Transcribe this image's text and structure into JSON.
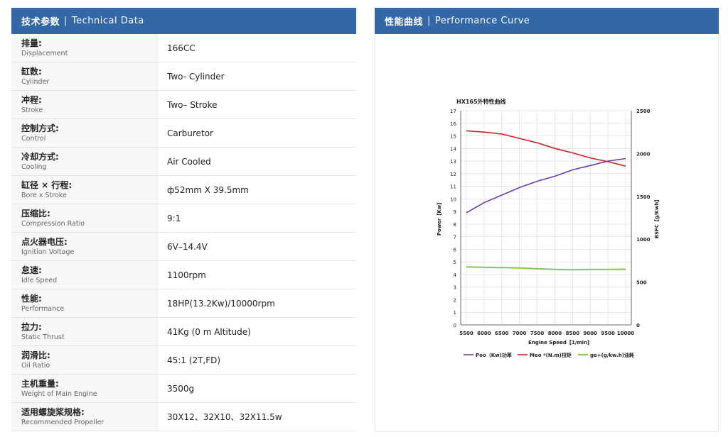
{
  "left": {
    "title_zh": "技术参数",
    "separator": "|",
    "title_en": "Technical Data",
    "rows": [
      {
        "zh": "排量:",
        "en": "Displacement",
        "value": "166CC"
      },
      {
        "zh": "缸数:",
        "en": "Cylinder",
        "value": "Two- Cylinder"
      },
      {
        "zh": "冲程:",
        "en": "Stroke",
        "value": "Two– Stroke"
      },
      {
        "zh": "控制方式:",
        "en": "Control",
        "value": "Carburetor"
      },
      {
        "zh": "冷却方式:",
        "en": "Cooling",
        "value": "Air Cooled"
      },
      {
        "zh": "缸径 × 行程:",
        "en": "Bore x Stroke",
        "value": "ф52mm X 39.5mm"
      },
      {
        "zh": "压缩比:",
        "en": "Compression Ratio",
        "value": "9:1"
      },
      {
        "zh": "点火器电压:",
        "en": "Ignition Voltage",
        "value": "6V–14.4V"
      },
      {
        "zh": "怠速:",
        "en": "Idle Speed",
        "value": "1100rpm"
      },
      {
        "zh": "性能:",
        "en": "Performance",
        "value": "18HP(13.2Kw)/10000rpm"
      },
      {
        "zh": "拉力:",
        "en": "Static Thrust",
        "value": "41Kg (0 m Altitude)"
      },
      {
        "zh": "润滑比:",
        "en": "Oil Ratio",
        "value": "45:1 (2T,FD)"
      },
      {
        "zh": "主机重量:",
        "en": "Weight of Main Engine",
        "value": "3500g"
      },
      {
        "zh": "适用螺旋桨规格:",
        "en": "Recommended Propeller",
        "value": "30X12、32X10、32X11.5w"
      }
    ]
  },
  "right": {
    "title_zh": "性能曲线",
    "separator": "|",
    "title_en": "Performance Curve"
  },
  "chart_data": {
    "type": "line",
    "title": "HX165外特性曲线",
    "xlabel": "Engine Speed【1/min】",
    "ylabel": "Power【Kw】",
    "y2label": "BSFC【g/Kwh】",
    "x": [
      5500,
      6000,
      6500,
      7000,
      7500,
      8000,
      8500,
      9000,
      9500,
      10000
    ],
    "xticks": [
      "5500",
      "6000",
      "6500",
      "7000",
      "7500",
      "8000",
      "8500",
      "9000",
      "9500",
      "10000"
    ],
    "xlim": [
      5500,
      10000
    ],
    "ylim": [
      0,
      17
    ],
    "yticks": [
      "0",
      "1",
      "2",
      "3",
      "4",
      "5",
      "6",
      "7",
      "8",
      "9",
      "10",
      "11",
      "12",
      "13",
      "14",
      "15",
      "16",
      "17"
    ],
    "y2lim": [
      0,
      2500
    ],
    "y2ticks": [
      "0",
      "500",
      "1000",
      "1500",
      "2000",
      "2500"
    ],
    "grid": true,
    "legend_position": "bottom",
    "series": [
      {
        "name": "Poo（Kw)功率",
        "color": "#6a3ab5",
        "values": [
          8.9,
          9.7,
          10.3,
          10.9,
          11.4,
          11.8,
          12.3,
          12.65,
          13.0,
          13.2
        ]
      },
      {
        "name": "Meo *(N.m)扭矩",
        "color": "#d22020",
        "values": [
          15.4,
          15.3,
          15.15,
          14.8,
          14.45,
          14.0,
          13.65,
          13.25,
          12.95,
          12.6
        ]
      },
      {
        "name": "ge+(g/kw.h)油耗",
        "color": "#8dc65a",
        "values": [
          4.6,
          4.57,
          4.55,
          4.52,
          4.45,
          4.4,
          4.38,
          4.4,
          4.4,
          4.42
        ]
      }
    ]
  }
}
